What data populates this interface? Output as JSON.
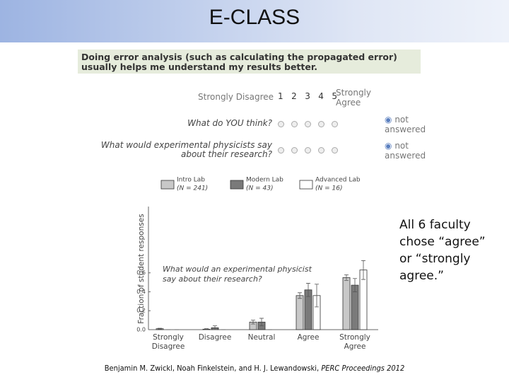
{
  "header": {
    "title": "E-CLASS"
  },
  "survey": {
    "question": "Doing error analysis (such as calculating the propagated error) usually helps me understand my results better.",
    "scale_left": "Strongly Disagree",
    "scale_numbers": [
      "1",
      "2",
      "3",
      "4",
      "5"
    ],
    "scale_right": "Strongly Agree",
    "rows": [
      {
        "prompt": "What do YOU think?",
        "not_answered": "not answered"
      },
      {
        "prompt": "What would experimental physicists say about their research?",
        "not_answered": "not answered"
      }
    ]
  },
  "chart_data": {
    "type": "bar",
    "y_label": "Fraction of student responses",
    "annotation": "What would an experimental physicist say about their research?",
    "categories": [
      "Strongly Disagree",
      "Disagree",
      "Neutral",
      "Agree",
      "Strongly Agree"
    ],
    "series": [
      {
        "name": "Intro Lab",
        "sample": "(N = 241)",
        "color": "#c8c8c8",
        "values": [
          0.01,
          0.005,
          0.08,
          0.36,
          0.55
        ],
        "errors": [
          0.005,
          0.005,
          0.02,
          0.03,
          0.03
        ]
      },
      {
        "name": "Modern Lab",
        "sample": "(N = 43)",
        "color": "#7a7a7a",
        "values": [
          0.0,
          0.02,
          0.08,
          0.42,
          0.47
        ],
        "errors": [
          0.0,
          0.02,
          0.04,
          0.07,
          0.07
        ]
      },
      {
        "name": "Advanced Lab",
        "sample": "(N = 16)",
        "color": "#ffffff",
        "values": [
          0.0,
          0.0,
          0.0,
          0.36,
          0.63
        ],
        "errors": [
          0.0,
          0.0,
          0.0,
          0.12,
          0.1
        ]
      }
    ],
    "ylim": [
      0,
      1.3
    ],
    "yticks": [
      {
        "value": 0,
        "label": "0.0"
      },
      0.2,
      0.4,
      0.6
    ]
  },
  "note": "All 6 faculty chose “agree” or “strongly agree.”",
  "citation": {
    "authors": "Benjamin M. Zwickl, Noah Finkelstein, and H. J. Lewandowski,",
    "venue": "PERC Proceedings 2012"
  }
}
